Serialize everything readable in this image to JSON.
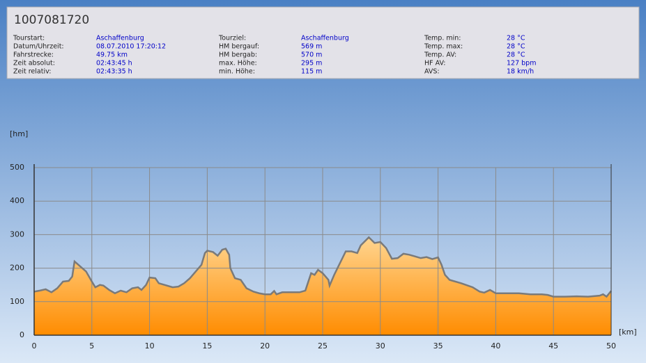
{
  "header": {
    "title": "1007081720",
    "columns": [
      [
        [
          "Tourstart:",
          "Aschaffenburg"
        ],
        [
          "Datum/Uhrzeit:",
          "08.07.2010 17:20:12"
        ],
        [
          "Fahrstrecke:",
          "49.75 km"
        ],
        [
          "Zeit absolut:",
          "02:43:45 h"
        ],
        [
          "Zeit relativ:",
          "02:43:35 h"
        ]
      ],
      [
        [
          "Tourziel:",
          "Aschaffenburg"
        ],
        [
          "HM bergauf:",
          "569 m"
        ],
        [
          "HM bergab:",
          "570 m"
        ],
        [
          "max. Höhe:",
          "295 m"
        ],
        [
          "min. Höhe:",
          "115 m"
        ]
      ],
      [
        [
          "Temp. min:",
          "28 °C"
        ],
        [
          "Temp. max:",
          "28 °C"
        ],
        [
          "Temp. AV:",
          "28 °C"
        ],
        [
          "HF AV:",
          "127 bpm"
        ],
        [
          "AVS:",
          "18 km/h"
        ]
      ]
    ]
  },
  "chart_data": {
    "type": "area",
    "y_label": "[hm]",
    "x_label": "[km]",
    "x": [
      0,
      0.5,
      1,
      1.5,
      2,
      2.5,
      3,
      3.3,
      3.5,
      4,
      4.5,
      5,
      5.3,
      5.7,
      6,
      6.5,
      7,
      7.5,
      8,
      8.5,
      9,
      9.3,
      9.7,
      10,
      10.5,
      10.8,
      11.3,
      12,
      12.5,
      13,
      13.5,
      14,
      14.5,
      14.8,
      15,
      15.5,
      15.9,
      16.3,
      16.6,
      16.9,
      17,
      17.4,
      17.9,
      18.4,
      19,
      19.5,
      20,
      20.5,
      20.8,
      21,
      21.5,
      22,
      23,
      23.5,
      24,
      24.3,
      24.6,
      25,
      25.5,
      25.6,
      26,
      26.5,
      27,
      27.5,
      28,
      28.3,
      28.8,
      29,
      29.5,
      30,
      30.5,
      31,
      31.5,
      32,
      32.5,
      33,
      33.5,
      34,
      34.5,
      35,
      35.3,
      35.6,
      36,
      37,
      38,
      38.6,
      39,
      39.5,
      40,
      42,
      43,
      44,
      44.5,
      45,
      46,
      47,
      48,
      49,
      49.3,
      49.6,
      50
    ],
    "values": [
      130,
      133,
      137,
      128,
      140,
      160,
      162,
      175,
      220,
      205,
      190,
      160,
      143,
      150,
      148,
      135,
      125,
      133,
      128,
      140,
      143,
      135,
      150,
      172,
      170,
      155,
      150,
      143,
      145,
      155,
      170,
      190,
      210,
      245,
      252,
      248,
      237,
      255,
      258,
      240,
      200,
      170,
      165,
      140,
      130,
      125,
      122,
      122,
      132,
      122,
      128,
      128,
      128,
      133,
      185,
      180,
      195,
      185,
      165,
      148,
      180,
      215,
      250,
      250,
      245,
      268,
      285,
      292,
      275,
      278,
      260,
      228,
      230,
      243,
      240,
      235,
      230,
      233,
      227,
      232,
      210,
      180,
      165,
      155,
      143,
      130,
      127,
      135,
      125,
      125,
      122,
      122,
      120,
      115,
      115,
      116,
      115,
      118,
      122,
      115,
      132
    ],
    "line_color": "#7a7a7a",
    "fill_colors": [
      "#ffd590",
      "#ff8c00"
    ],
    "xlim": [
      0,
      50
    ],
    "xticks": [
      0,
      5,
      10,
      15,
      20,
      25,
      30,
      35,
      40,
      45,
      50
    ],
    "ylim": [
      0,
      500
    ],
    "yticks": [
      0,
      100,
      200,
      300,
      400,
      500
    ],
    "grid": true
  }
}
